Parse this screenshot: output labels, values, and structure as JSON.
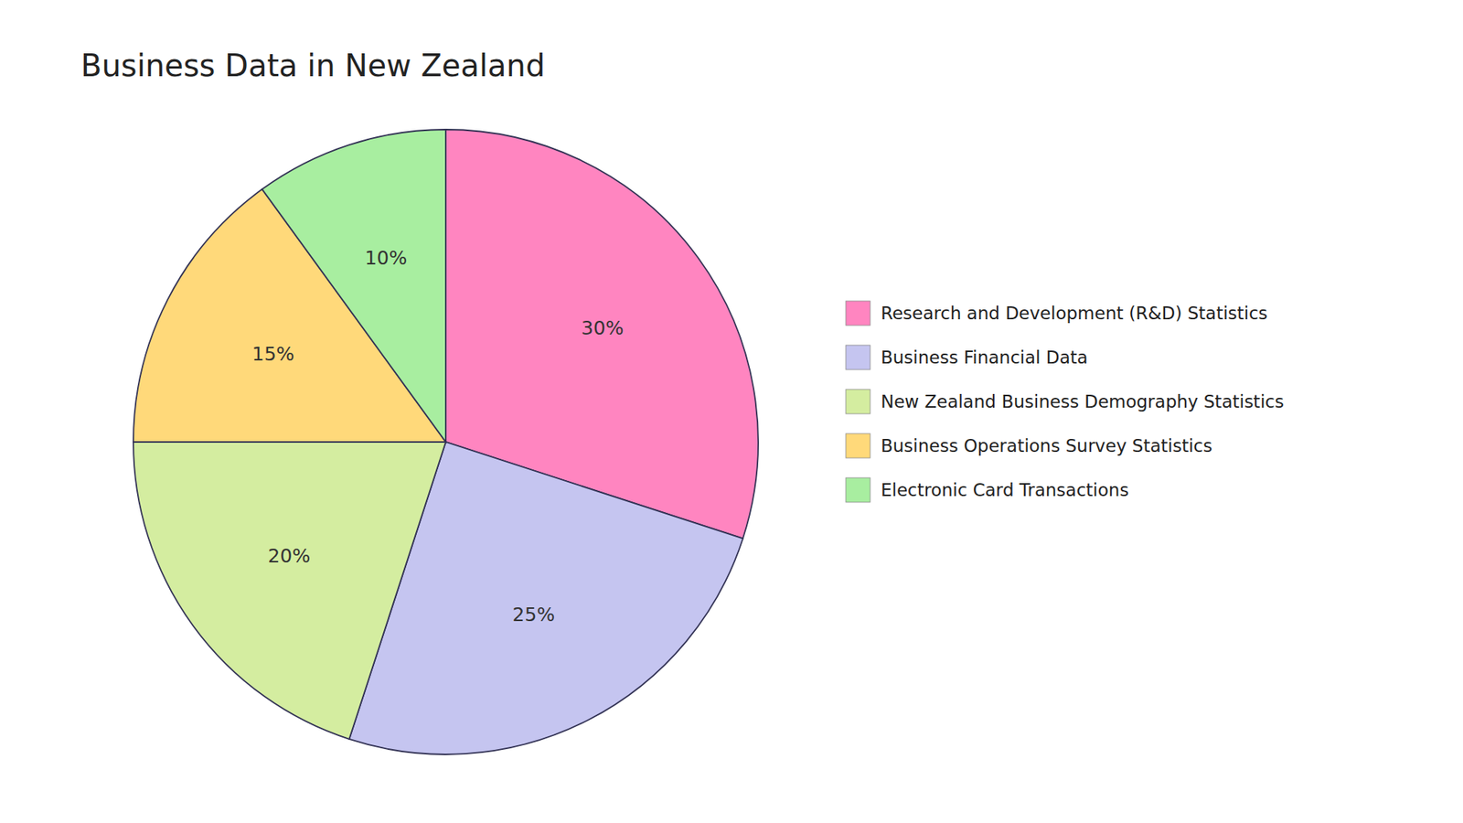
{
  "chart_data": {
    "type": "pie",
    "title": "Business Data in New Zealand",
    "categories": [
      "Research and Development (R&D) Statistics",
      "Business Financial Data",
      "New Zealand Business Demography Statistics",
      "Business Operations Survey Statistics",
      "Electronic Card Transactions"
    ],
    "values": [
      30,
      25,
      20,
      15,
      10
    ],
    "value_labels": [
      "30%",
      "25%",
      "20%",
      "15%",
      "10%"
    ],
    "colors": [
      "#FF85C0",
      "#C5C5F0",
      "#D4EDA0",
      "#FFD97A",
      "#A8EEA0"
    ],
    "data_labels": true,
    "legend": "right"
  }
}
